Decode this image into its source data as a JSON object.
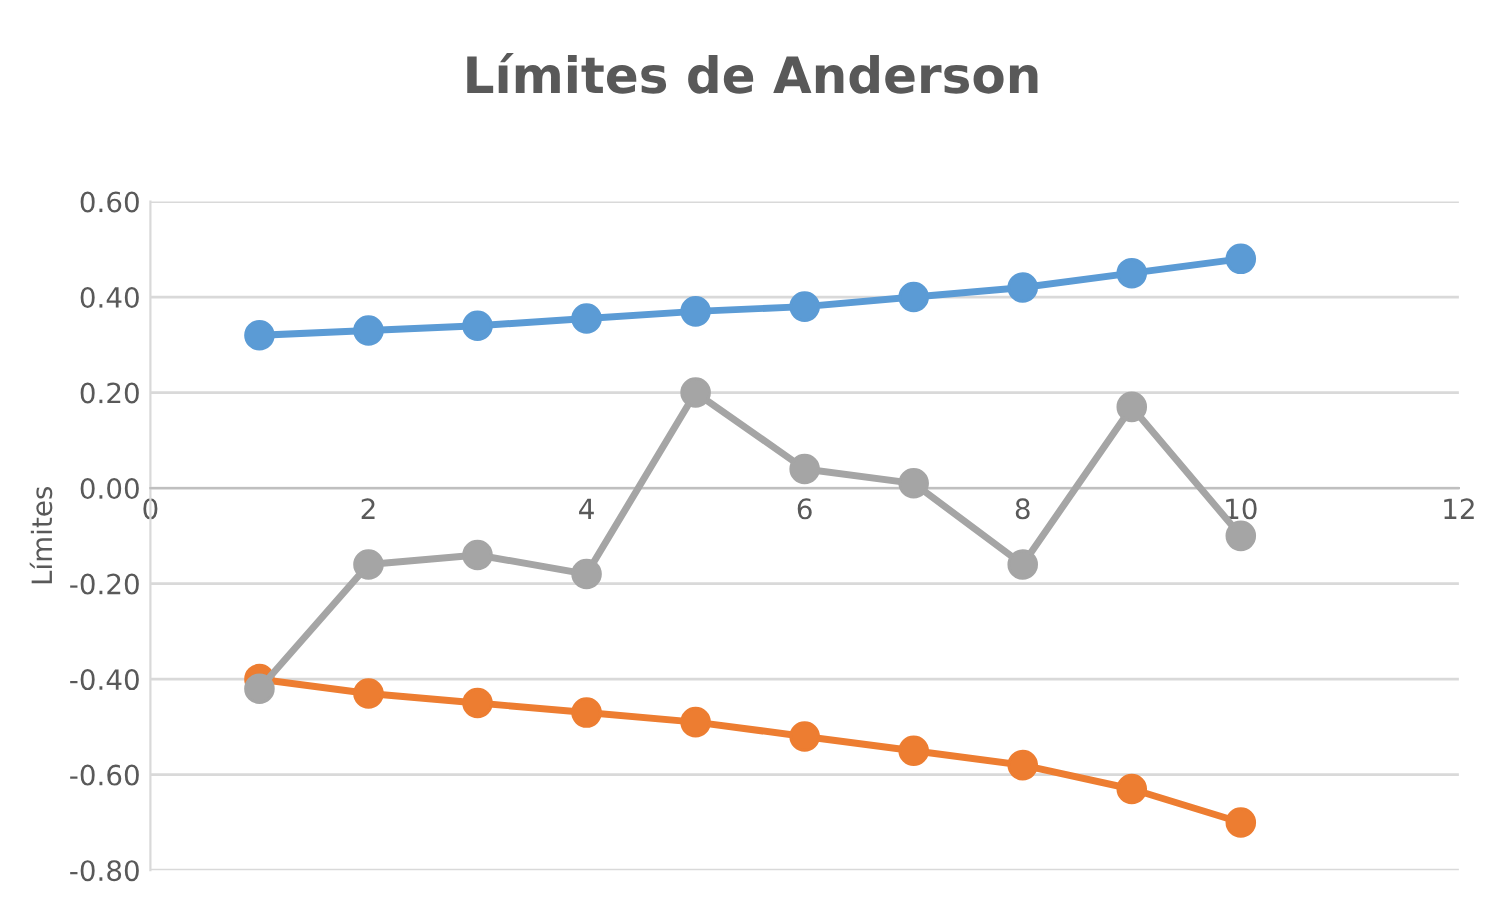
{
  "chart_data": {
    "type": "line",
    "title": "Límites de Anderson",
    "ylabel": "Límites",
    "x": [
      1,
      2,
      3,
      4,
      5,
      6,
      7,
      8,
      9,
      10
    ],
    "series": [
      {
        "color": "#5b9bd5",
        "values": [
          0.32,
          0.33,
          0.34,
          0.355,
          0.37,
          0.38,
          0.4,
          0.42,
          0.45,
          0.48
        ]
      },
      {
        "color": "#ed7d31",
        "values": [
          -0.4,
          -0.43,
          -0.45,
          -0.47,
          -0.49,
          -0.52,
          -0.55,
          -0.58,
          -0.63,
          -0.7
        ]
      },
      {
        "color": "#a5a5a5",
        "values": [
          -0.42,
          -0.16,
          -0.14,
          -0.18,
          0.2,
          0.04,
          0.01,
          -0.16,
          0.17,
          -0.1
        ]
      }
    ],
    "xlim": [
      0,
      12
    ],
    "xticks": [
      0,
      2,
      4,
      6,
      8,
      10,
      12
    ],
    "ylim": [
      -0.8,
      0.6
    ],
    "yticks": [
      {
        "value": -0.8,
        "label": "-0.80"
      },
      {
        "value": -0.6,
        "label": "-0.60"
      },
      {
        "value": -0.4,
        "label": "-0.40"
      },
      {
        "value": -0.2,
        "label": "-0.20"
      },
      {
        "value": 0,
        "label": "0.00"
      },
      {
        "value": 0.2,
        "label": "0.20"
      },
      {
        "value": 0.4,
        "label": "0.40"
      },
      {
        "value": 0.6,
        "label": "0.60"
      }
    ],
    "grid": "y",
    "marker": "circle",
    "line_style": "solid",
    "legend": false
  }
}
